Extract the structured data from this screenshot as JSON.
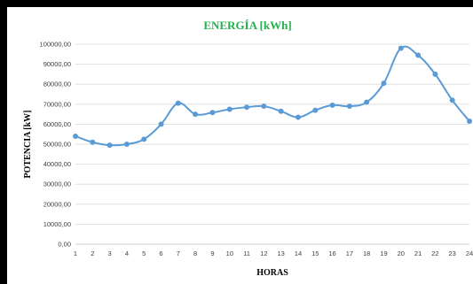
{
  "chart_data": {
    "type": "line",
    "title": "ENERGÍA [kWh]",
    "xlabel": "HORAS",
    "ylabel": "POTENCIA [kW]",
    "x": [
      1,
      2,
      3,
      4,
      5,
      6,
      7,
      8,
      9,
      10,
      11,
      12,
      13,
      14,
      15,
      16,
      17,
      18,
      19,
      20,
      21,
      22,
      23,
      24
    ],
    "y_tick_labels": [
      "0,00",
      "10000,00",
      "20000,00",
      "30000,00",
      "40000,00",
      "50000,00",
      "60000,00",
      "70000,00",
      "80000,00",
      "90000,00",
      "100000,00"
    ],
    "ylim": [
      0,
      100000
    ],
    "grid": true,
    "series": [
      {
        "values": [
          54000,
          51000,
          49500,
          50000,
          52500,
          60000,
          70500,
          65000,
          65800,
          67500,
          68500,
          69000,
          66500,
          63500,
          67000,
          69500,
          69000,
          71000,
          80500,
          98000,
          94500,
          85000,
          72000,
          61500
        ],
        "color": "#5b9bd5"
      }
    ]
  }
}
